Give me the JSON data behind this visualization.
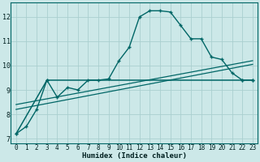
{
  "background_color": "#cce8e8",
  "grid_color": "#aacfcf",
  "line_color": "#006666",
  "xlabel": "Humidex (Indice chaleur)",
  "xlim": [
    -0.5,
    23.5
  ],
  "ylim": [
    6.8,
    12.6
  ],
  "yticks": [
    7,
    8,
    9,
    10,
    11,
    12
  ],
  "xticks": [
    0,
    1,
    2,
    3,
    4,
    5,
    6,
    7,
    8,
    9,
    10,
    11,
    12,
    13,
    14,
    15,
    16,
    17,
    18,
    19,
    20,
    21,
    22,
    23
  ],
  "series1_x": [
    0,
    1,
    2,
    3,
    4,
    5,
    6,
    7,
    8,
    9,
    10,
    11,
    12,
    13,
    14,
    15,
    16,
    17,
    18,
    19,
    20,
    21,
    22,
    23
  ],
  "series1_y": [
    7.2,
    7.5,
    8.2,
    9.4,
    8.7,
    9.1,
    9.0,
    9.4,
    9.4,
    9.45,
    10.2,
    10.75,
    12.0,
    12.25,
    12.25,
    12.2,
    11.65,
    11.1,
    11.1,
    10.35,
    10.25,
    9.7,
    9.4,
    9.4
  ],
  "series2_x": [
    0,
    3,
    22,
    23
  ],
  "series2_y": [
    7.2,
    9.4,
    9.4,
    9.4
  ],
  "series3_x": [
    0,
    23
  ],
  "series3_y": [
    8.2,
    10.05
  ],
  "series4_x": [
    0,
    23
  ],
  "series4_y": [
    8.4,
    10.2
  ]
}
